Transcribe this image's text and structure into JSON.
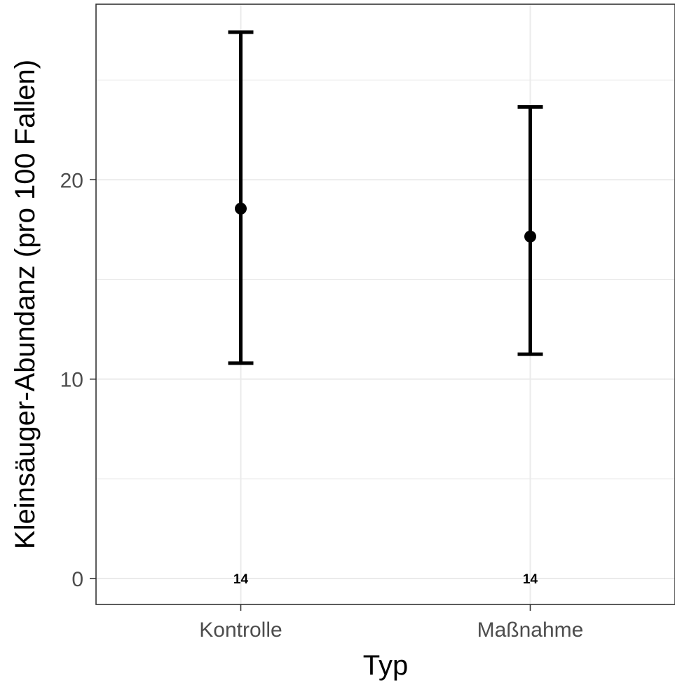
{
  "chart_data": {
    "type": "errorbar",
    "categories": [
      "Kontrolle",
      "Maßnahme"
    ],
    "series": [
      {
        "values": [
          18.55,
          17.15
        ],
        "lower": [
          10.8,
          11.25
        ],
        "upper": [
          27.4,
          23.65
        ],
        "n_labels": [
          "14",
          "14"
        ]
      }
    ],
    "xlabel": "Typ",
    "ylabel": "Kleinsäuger-Abundanz (pro 100 Fallen)",
    "yticks": [
      0,
      10,
      20
    ],
    "ytick_labels": [
      "0",
      "10",
      "20"
    ],
    "ylim": [
      -1.3,
      28.8
    ],
    "grid": true,
    "colors": {
      "mark": "#000000",
      "grid": "#ebebeb",
      "panel_border": "#333333",
      "tick_text": "#4d4d4d"
    }
  }
}
